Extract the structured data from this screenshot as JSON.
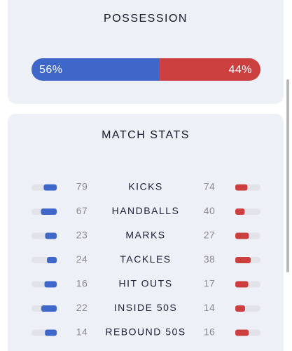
{
  "possession": {
    "title": "POSSESSION",
    "home": {
      "value": 56,
      "label": "56%"
    },
    "away": {
      "value": 44,
      "label": "44%"
    }
  },
  "match_stats": {
    "title": "MATCH STATS",
    "rows": [
      {
        "name": "KICKS",
        "home": 79,
        "away": 74
      },
      {
        "name": "HANDBALLS",
        "home": 67,
        "away": 40
      },
      {
        "name": "MARKS",
        "home": 23,
        "away": 27
      },
      {
        "name": "TACKLES",
        "home": 24,
        "away": 38
      },
      {
        "name": "HIT OUTS",
        "home": 16,
        "away": 17
      },
      {
        "name": "INSIDE 50S",
        "home": 22,
        "away": 14
      },
      {
        "name": "REBOUND 50S",
        "home": 14,
        "away": 16
      }
    ]
  }
}
